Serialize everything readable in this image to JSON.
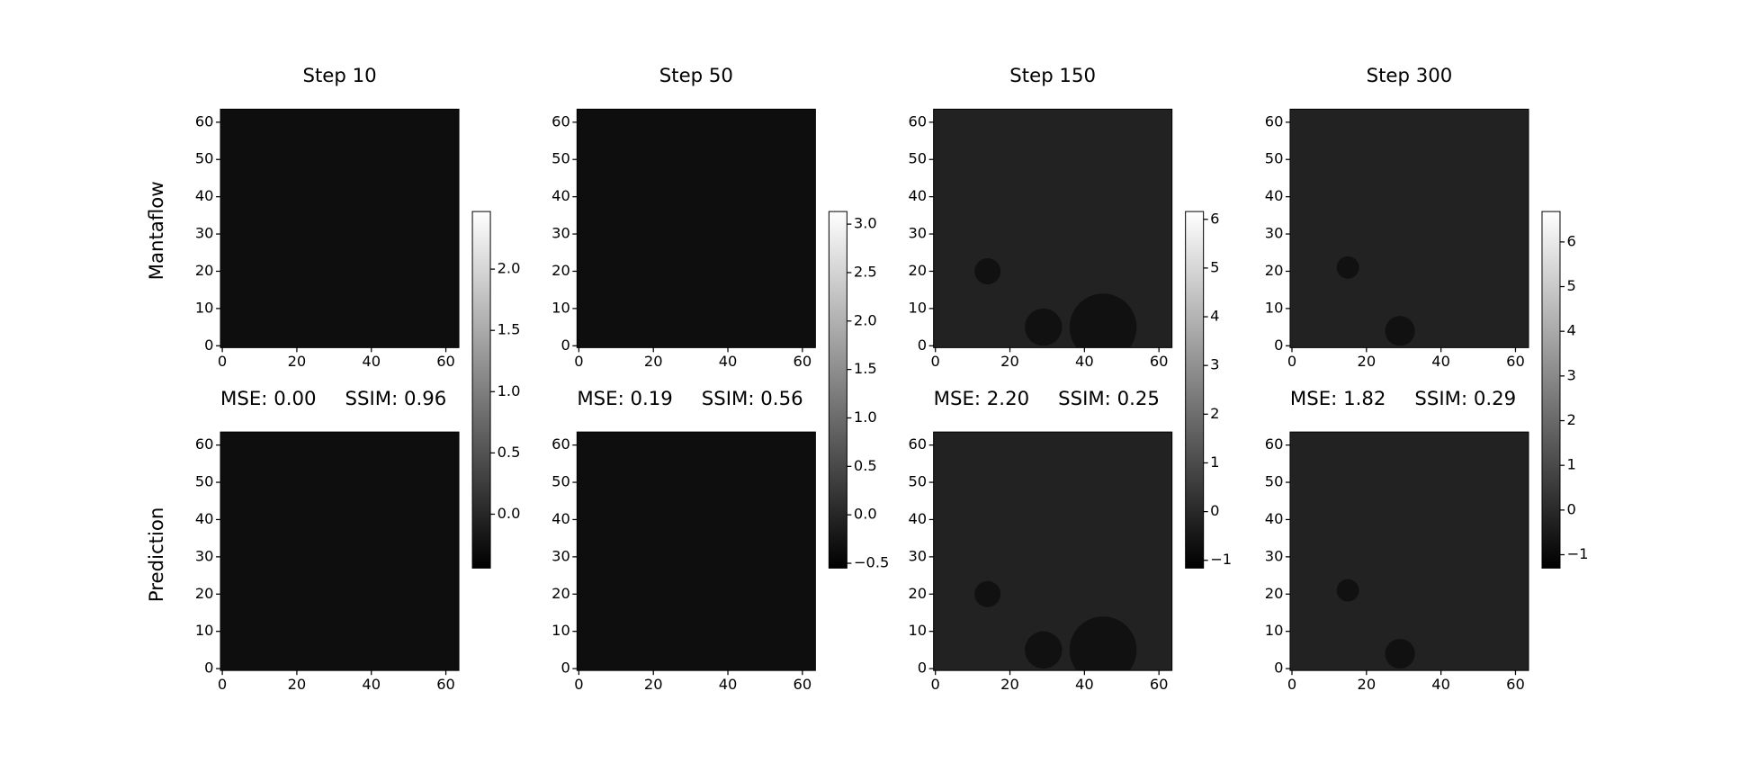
{
  "row_labels": [
    "Mantaflow",
    "Prediction"
  ],
  "chart_data": [
    {
      "type": "heatmap",
      "title": "Step 10",
      "xlim": [
        -0.5,
        63.5
      ],
      "ylim": [
        63.5,
        -0.5
      ],
      "xticks": [
        0,
        20,
        40,
        60
      ],
      "yticks": [
        0,
        10,
        20,
        30,
        40,
        50,
        60
      ],
      "metrics": [
        "MSE: 0.00",
        "SSIM: 0.96"
      ],
      "colorbar": {
        "ylim": [
          -0.44,
          2.47
        ],
        "yticks": [
          {
            "value": 0,
            "label": "0.0"
          },
          {
            "value": 0.5,
            "label": "0.5"
          },
          {
            "value": 1,
            "label": "1.0"
          },
          {
            "value": 1.5,
            "label": "1.5"
          },
          {
            "value": 2,
            "label": "2.0"
          }
        ]
      }
    },
    {
      "type": "heatmap",
      "title": "Step 50",
      "xlim": [
        -0.5,
        63.5
      ],
      "ylim": [
        63.5,
        -0.5
      ],
      "xticks": [
        0,
        20,
        40,
        60
      ],
      "yticks": [
        0,
        10,
        20,
        30,
        40,
        50,
        60
      ],
      "metrics": [
        "MSE: 0.19",
        "SSIM: 0.56"
      ],
      "colorbar": {
        "ylim": [
          -0.55,
          3.13
        ],
        "yticks": [
          {
            "value": -0.5,
            "label": "−0.5"
          },
          {
            "value": 0,
            "label": "0.0"
          },
          {
            "value": 0.5,
            "label": "0.5"
          },
          {
            "value": 1,
            "label": "1.0"
          },
          {
            "value": 1.5,
            "label": "1.5"
          },
          {
            "value": 2,
            "label": "2.0"
          },
          {
            "value": 2.5,
            "label": "2.5"
          },
          {
            "value": 3,
            "label": "3.0"
          }
        ]
      }
    },
    {
      "type": "heatmap",
      "title": "Step 150",
      "xlim": [
        -0.5,
        63.5
      ],
      "ylim": [
        63.5,
        -0.5
      ],
      "xticks": [
        0,
        20,
        40,
        60
      ],
      "yticks": [
        0,
        10,
        20,
        30,
        40,
        50,
        60
      ],
      "metrics": [
        "MSE: 2.20",
        "SSIM: 0.25"
      ],
      "colorbar": {
        "ylim": [
          -1.16,
          6.16
        ],
        "yticks": [
          {
            "value": -1,
            "label": "−1"
          },
          0,
          1,
          2,
          3,
          4,
          5,
          6
        ]
      }
    },
    {
      "type": "heatmap",
      "title": "Step 300",
      "xlim": [
        -0.5,
        63.5
      ],
      "ylim": [
        63.5,
        -0.5
      ],
      "xticks": [
        0,
        20,
        40,
        60
      ],
      "yticks": [
        0,
        10,
        20,
        30,
        40,
        50,
        60
      ],
      "metrics": [
        "MSE: 1.82",
        "SSIM: 0.29"
      ],
      "colorbar": {
        "ylim": [
          -1.3,
          6.68
        ],
        "yticks": [
          {
            "value": -1,
            "label": "−1"
          },
          0,
          1,
          2,
          3,
          4,
          5,
          6
        ]
      }
    }
  ]
}
